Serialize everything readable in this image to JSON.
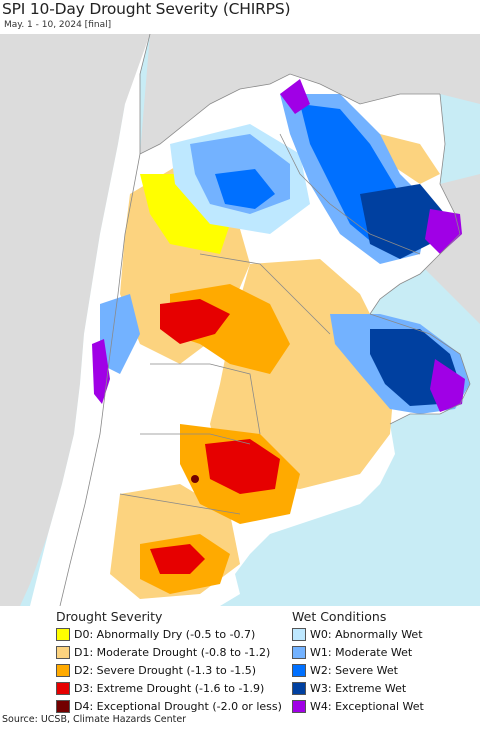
{
  "title": "SPI 10-Day Drought Severity (CHIRPS)",
  "subtitle": "May. 1 - 10, 2024 [final]",
  "colors": {
    "ocean": "#c8ecf5",
    "land_outside": "#dcdcdc",
    "border": "#8a8a8a"
  },
  "legend": {
    "drought_heading": "Drought Severity",
    "wet_heading": "Wet Conditions",
    "drought": [
      {
        "label": "D0: Abnormally Dry (-0.5 to -0.7)",
        "color": "#ffff00"
      },
      {
        "label": "D1: Moderate Drought (-0.8 to -1.2)",
        "color": "#fcd37f"
      },
      {
        "label": "D2: Severe Drought (-1.3 to -1.5)",
        "color": "#ffaa00"
      },
      {
        "label": "D3: Extreme Drought (-1.6 to -1.9)",
        "color": "#e60000"
      },
      {
        "label": "D4: Exceptional Drought (-2.0 or less)",
        "color": "#730000"
      }
    ],
    "wet": [
      {
        "label": "W0: Abnormally Wet",
        "color": "#bee8ff"
      },
      {
        "label": "W1: Moderate Wet",
        "color": "#73b2ff"
      },
      {
        "label": "W2: Severe Wet",
        "color": "#0070ff"
      },
      {
        "label": "W3: Extreme Wet",
        "color": "#0040a0"
      },
      {
        "label": "W4: Exceptional Wet",
        "color": "#a000e6"
      }
    ]
  },
  "source": "Source: UCSB, Climate Hazards Center"
}
